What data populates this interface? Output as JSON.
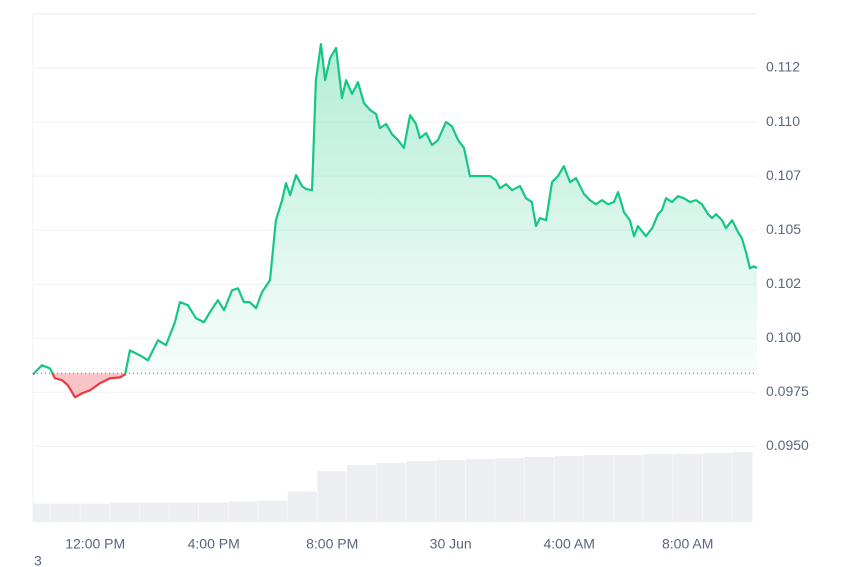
{
  "chart_data": {
    "type": "line",
    "color": "#16c784",
    "down_color": "#ea3943",
    "baseline": 0.09838,
    "x": [
      9.9,
      10.2,
      10.47,
      10.64,
      10.88,
      11.08,
      11.32,
      11.55,
      11.82,
      12.16,
      12.5,
      12.84,
      13.01,
      13.17,
      13.51,
      13.78,
      14.12,
      14.39,
      14.69,
      14.86,
      15.13,
      15.4,
      15.67,
      15.87,
      16.14,
      16.35,
      16.62,
      16.82,
      17.02,
      17.22,
      17.43,
      17.63,
      17.9,
      18.1,
      18.31,
      18.44,
      18.58,
      18.78,
      18.98,
      19.12,
      19.32,
      19.45,
      19.62,
      19.76,
      19.93,
      20.13,
      20.33,
      20.47,
      20.67,
      20.87,
      21.07,
      21.28,
      21.48,
      21.61,
      21.82,
      22.02,
      22.22,
      22.42,
      22.63,
      22.83,
      22.96,
      23.17,
      23.37,
      23.57,
      23.84,
      24.04,
      24.25,
      24.45,
      24.65,
      24.92,
      25.33,
      25.53,
      25.66,
      25.87,
      26.07,
      26.34,
      26.54,
      26.74,
      26.88,
      27.01,
      27.22,
      27.42,
      27.62,
      27.82,
      28.03,
      28.23,
      28.5,
      28.7,
      28.9,
      29.11,
      29.31,
      29.51,
      29.65,
      29.85,
      30.05,
      30.19,
      30.32,
      30.59,
      30.8,
      31.0,
      31.13,
      31.27,
      31.47,
      31.67,
      31.87,
      32.08,
      32.28,
      32.48,
      32.69,
      32.82,
      32.96,
      33.16,
      33.29,
      33.5,
      33.7,
      33.83,
      33.97,
      34.1,
      34.24,
      34.34
    ],
    "values": [
      0.09833,
      0.09875,
      0.09861,
      0.09815,
      0.09806,
      0.09782,
      0.09727,
      0.09745,
      0.09759,
      0.09792,
      0.09815,
      0.09819,
      0.09833,
      0.09944,
      0.09921,
      0.09898,
      0.09991,
      0.09968,
      0.10074,
      0.10167,
      0.10153,
      0.10093,
      0.10074,
      0.1012,
      0.10176,
      0.1013,
      0.10222,
      0.10231,
      0.10167,
      0.10167,
      0.10139,
      0.10213,
      0.10269,
      0.10546,
      0.10639,
      0.10718,
      0.10662,
      0.10755,
      0.10704,
      0.1069,
      0.10685,
      0.11194,
      0.11361,
      0.11194,
      0.11296,
      0.11343,
      0.11111,
      0.11194,
      0.1113,
      0.11185,
      0.11088,
      0.11056,
      0.11037,
      0.10972,
      0.10991,
      0.10944,
      0.10917,
      0.1088,
      0.11032,
      0.10991,
      0.10926,
      0.10949,
      0.10894,
      0.10917,
      0.11,
      0.10981,
      0.10917,
      0.1088,
      0.1075,
      0.1075,
      0.1075,
      0.10731,
      0.10694,
      0.10713,
      0.10685,
      0.10704,
      0.10648,
      0.1063,
      0.10519,
      0.10556,
      0.10546,
      0.10722,
      0.1075,
      0.10796,
      0.10722,
      0.10741,
      0.10667,
      0.10639,
      0.1062,
      0.10639,
      0.1062,
      0.1063,
      0.10676,
      0.10583,
      0.10546,
      0.10472,
      0.10519,
      0.10472,
      0.10509,
      0.10574,
      0.10593,
      0.10648,
      0.1063,
      0.10657,
      0.10648,
      0.1063,
      0.10639,
      0.1062,
      0.10574,
      0.10556,
      0.10574,
      0.10546,
      0.10509,
      0.10546,
      0.10491,
      0.10463,
      0.10398,
      0.10324,
      0.10333,
      0.10324
    ],
    "xlim": [
      9.9,
      34.34
    ],
    "xticks": [
      {
        "value": 12,
        "label": "12:00 PM"
      },
      {
        "value": 16,
        "label": "4:00 PM"
      },
      {
        "value": 20,
        "label": "8:00 PM"
      },
      {
        "value": 24,
        "label": "30 Jun"
      },
      {
        "value": 28,
        "label": "4:00 AM"
      },
      {
        "value": 32,
        "label": "8:00 AM"
      }
    ],
    "ylim": [
      0.0915,
      0.115
    ],
    "yticks": [
      {
        "value": 0.095,
        "label": "0.0950"
      },
      0.0975,
      {
        "value": 0.1,
        "label": "0.100"
      },
      {
        "value": 0.1025,
        "label": "0.102"
      },
      0.105,
      {
        "value": 0.1075,
        "label": "0.107"
      },
      {
        "value": 0.11,
        "label": "0.110"
      },
      {
        "value": 0.1125,
        "label": "0.112"
      }
    ],
    "grid": true,
    "volume": {
      "color": "#eceef2",
      "x": [
        10,
        11,
        12,
        13,
        14,
        15,
        16,
        17,
        18,
        19,
        20,
        21,
        22,
        23,
        24,
        25,
        26,
        27,
        28,
        29,
        30,
        31,
        32,
        33,
        34
      ],
      "values": [
        18,
        18,
        18,
        19,
        19,
        19,
        19,
        20,
        21,
        30,
        50,
        56,
        58,
        60,
        61,
        62,
        63,
        64,
        65,
        66,
        66,
        67,
        67,
        68,
        69
      ]
    },
    "footnote": "3"
  }
}
